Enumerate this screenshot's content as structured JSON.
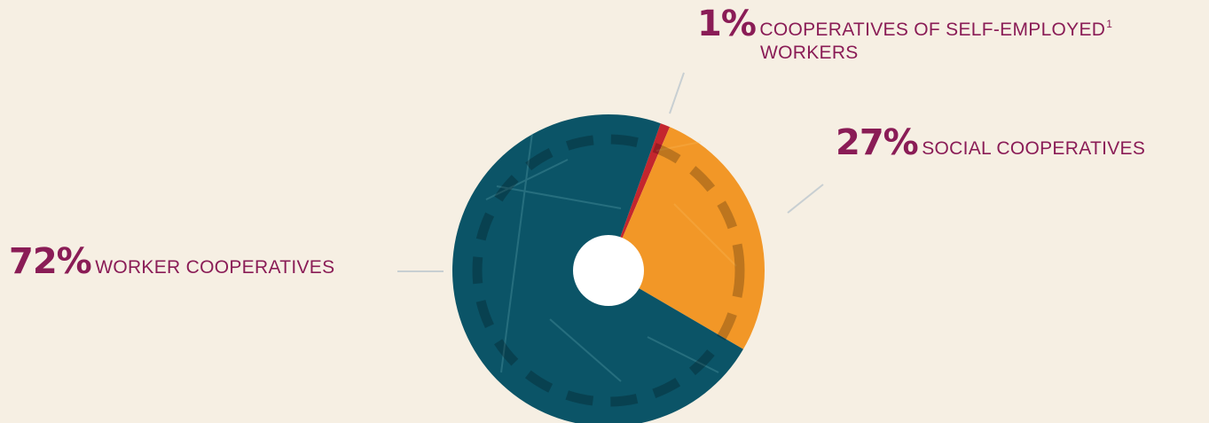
{
  "chart_data": {
    "type": "pie",
    "style": "donut",
    "slices": [
      {
        "name": "WORKER COOPERATIVES",
        "value": 72,
        "value_label": "72%",
        "color": "#0b5467"
      },
      {
        "name": "COOPERATIVES OF SELF-EMPLOYED",
        "name_line2": "WORKERS",
        "footnote": "1",
        "value": 1,
        "value_label": "1%",
        "color": "#c4262e"
      },
      {
        "name": "SOCIAL COOPERATIVES",
        "value": 27,
        "value_label": "27%",
        "color": "#f29727"
      }
    ],
    "legend": "none",
    "grid": false
  },
  "colors": {
    "background": "#f6efe3",
    "label_text": "#8a1c56",
    "leader_line": "#c8cfd2",
    "donut_hole": "#ffffff"
  }
}
